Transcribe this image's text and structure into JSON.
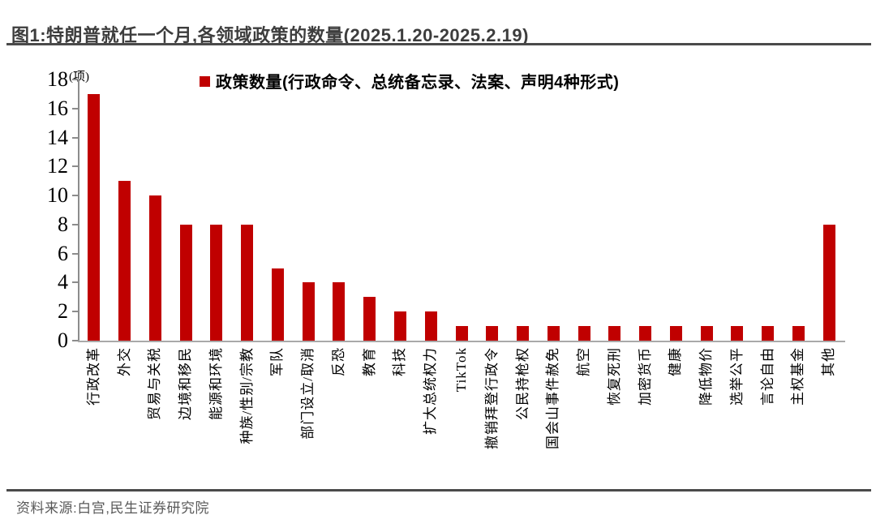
{
  "figure": {
    "title": "图1:特朗普就任一个月,各领域政策的数量(2025.1.20-2025.2.19)",
    "source": "资料来源:白宫,民生证券研究院"
  },
  "chart_data": {
    "type": "bar",
    "title": "特朗普就任一个月,各领域政策的数量(2025.1.20-2025.2.19)",
    "unit_label": "(项)",
    "legend": "政策数量(行政命令、总统备忘录、法案、声明4种形式)",
    "legend_position": "top",
    "categories": [
      "行政改革",
      "外交",
      "贸易与关税",
      "边境和移民",
      "能源和环境",
      "种族/性别/宗教",
      "军队",
      "部门设立/取消",
      "反恐",
      "教育",
      "科技",
      "扩大总统权力",
      "TikTok",
      "撤销拜登行政令",
      "公民持枪权",
      "国会山事件赦免",
      "航空",
      "恢复死刑",
      "加密货币",
      "健康",
      "降低物价",
      "选举公平",
      "言论自由",
      "主权基金",
      "其他"
    ],
    "values": [
      17,
      11,
      10,
      8,
      8,
      8,
      5,
      4,
      4,
      3,
      2,
      2,
      1,
      1,
      1,
      1,
      1,
      1,
      1,
      1,
      1,
      1,
      1,
      1,
      8
    ],
    "xlabel": "",
    "ylabel": "(项)",
    "ylim": [
      0,
      18
    ],
    "y_ticks": [
      0,
      2,
      4,
      6,
      8,
      10,
      12,
      14,
      16,
      18
    ],
    "grid": false,
    "bar_color": "#C00000",
    "colors": {
      "bar": "#C00000",
      "axis": "#8c8c8c",
      "title_text": "#3d3d3d",
      "rule": "#4a4a4a",
      "source_text": "#595959"
    }
  }
}
